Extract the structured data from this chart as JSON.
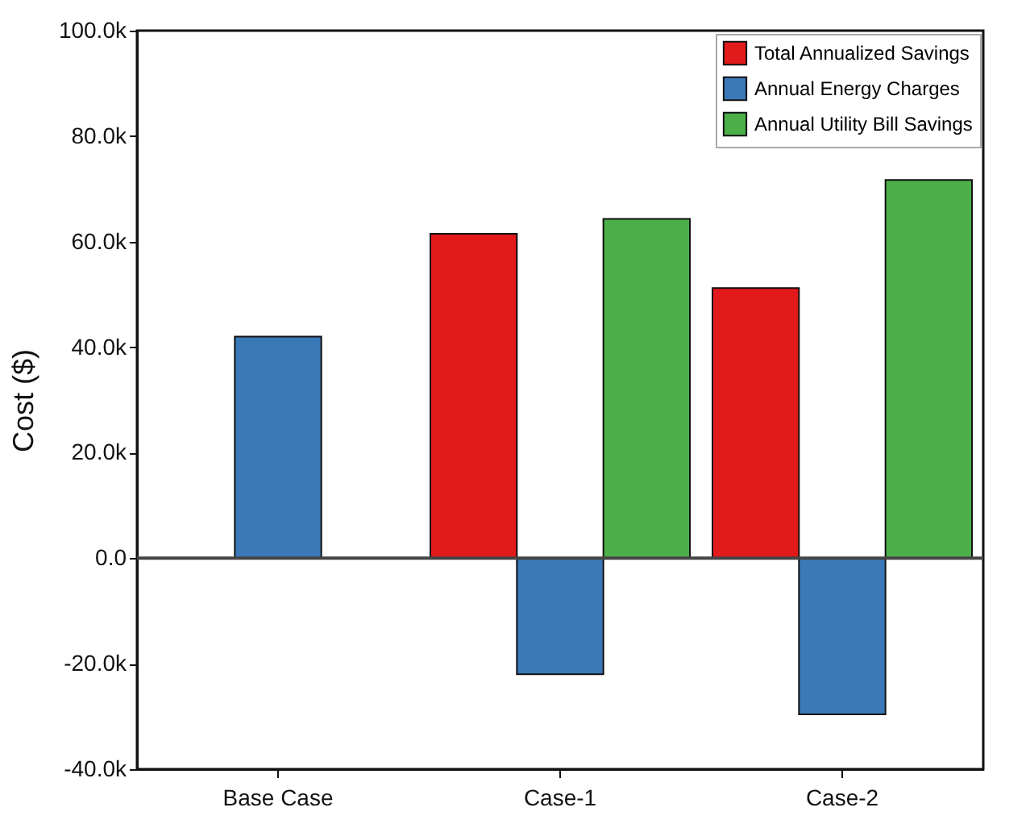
{
  "chart_data": {
    "type": "bar",
    "ylabel": "Cost ($)",
    "categories": [
      "Base Case",
      "Case-1",
      "Case-2"
    ],
    "series": [
      {
        "name": "Total Annualized Savings",
        "color": "#e31a1c",
        "values": [
          null,
          61500,
          51200
        ]
      },
      {
        "name": "Annual Energy Charges",
        "color": "#3a78b8",
        "values": [
          42000,
          -22000,
          -29600
        ]
      },
      {
        "name": "Annual Utility Bill Savings",
        "color": "#4caf4a",
        "values": [
          null,
          64300,
          71700
        ]
      }
    ],
    "ylim": [
      -40000,
      100000
    ],
    "yticks": [
      {
        "value": -40000,
        "label": "-40.0k"
      },
      {
        "value": -20000,
        "label": "-20.0k"
      },
      {
        "value": 0,
        "label": "0.0"
      },
      {
        "value": 20000,
        "label": "20.0k"
      },
      {
        "value": 40000,
        "label": "40.0k"
      },
      {
        "value": 60000,
        "label": "60.0k"
      },
      {
        "value": 80000,
        "label": "80.0k"
      },
      {
        "value": 100000,
        "label": "100.0k"
      }
    ],
    "ref_lines": [
      {
        "axis": "y",
        "value": 0
      }
    ],
    "grid": false,
    "legend": "top right"
  }
}
